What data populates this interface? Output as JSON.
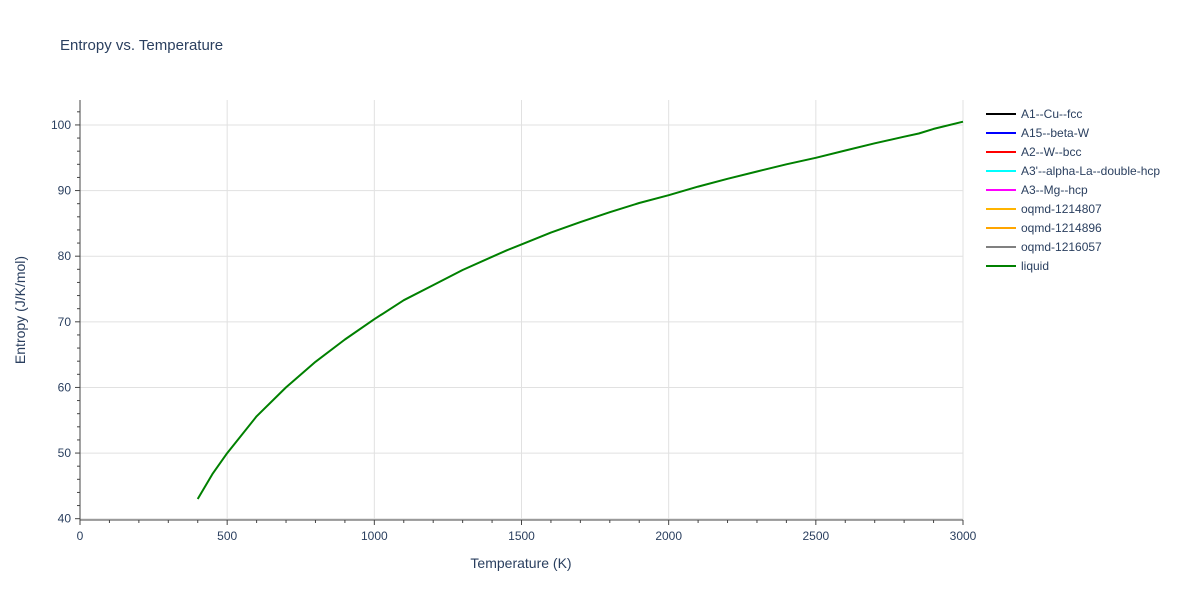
{
  "chart_data": {
    "type": "line",
    "title": "Entropy vs. Temperature",
    "xlabel": "Temperature (K)",
    "ylabel": "Entropy (J/K/mol)",
    "xlim": [
      0,
      3000
    ],
    "ylim": [
      39.8,
      103.8
    ],
    "x_ticks": [
      0,
      500,
      1000,
      1500,
      2000,
      2500,
      3000
    ],
    "y_ticks": [
      40,
      50,
      60,
      70,
      80,
      90,
      100
    ],
    "grid": true,
    "legend_position": "right",
    "series": [
      {
        "name": "A1--Cu--fcc",
        "color": "#000000",
        "x": [],
        "y": []
      },
      {
        "name": "A15--beta-W",
        "color": "#0000ff",
        "x": [],
        "y": []
      },
      {
        "name": "A2--W--bcc",
        "color": "#ff0000",
        "x": [],
        "y": []
      },
      {
        "name": "A3'--alpha-La--double-hcp",
        "color": "#00ffff",
        "x": [],
        "y": []
      },
      {
        "name": "A3--Mg--hcp",
        "color": "#ff00ff",
        "x": [],
        "y": []
      },
      {
        "name": "oqmd-1214807",
        "color": "#ffb400",
        "x": [],
        "y": []
      },
      {
        "name": "oqmd-1214896",
        "color": "#ffa500",
        "x": [],
        "y": []
      },
      {
        "name": "oqmd-1216057",
        "color": "#808080",
        "x": [],
        "y": []
      },
      {
        "name": "liquid",
        "color": "#008000",
        "x": [
          400,
          450,
          500,
          600,
          700,
          800,
          900,
          1000,
          1100,
          1200,
          1300,
          1400,
          1450,
          1500,
          1600,
          1700,
          1800,
          1900,
          2000,
          2100,
          2200,
          2300,
          2400,
          2500,
          2600,
          2700,
          2800,
          2850,
          2900,
          3000
        ],
        "y": [
          43.0,
          46.8,
          50.0,
          55.6,
          60.0,
          63.9,
          67.3,
          70.4,
          73.3,
          75.6,
          77.9,
          79.9,
          80.9,
          81.8,
          83.6,
          85.2,
          86.7,
          88.1,
          89.3,
          90.6,
          91.8,
          92.9,
          94.0,
          95.0,
          96.1,
          97.2,
          98.2,
          98.7,
          99.4,
          100.5
        ]
      }
    ]
  }
}
